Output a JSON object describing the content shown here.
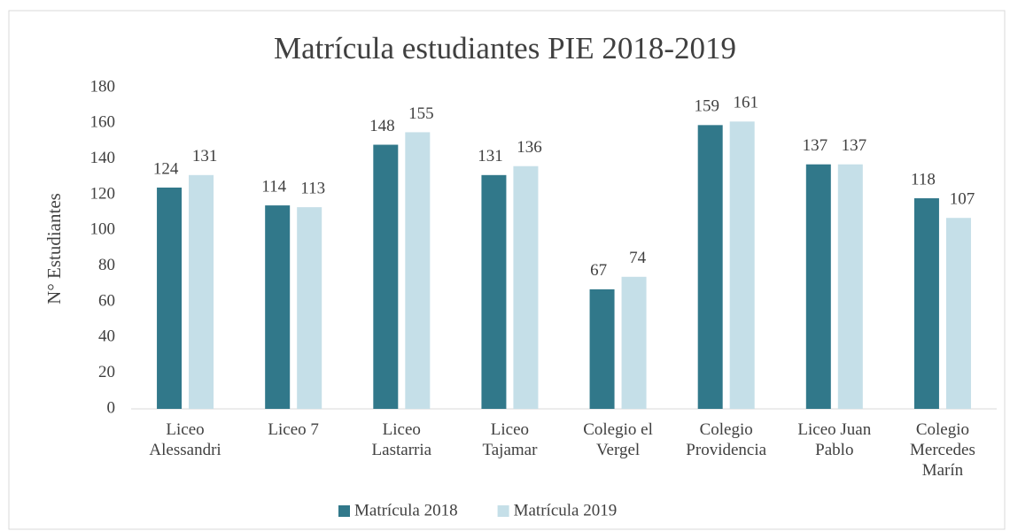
{
  "chart_data": {
    "type": "bar",
    "title": "Matrícula estudiantes PIE 2018-2019",
    "y_label": "N° Estudiantes",
    "categories": [
      "Liceo Alessandri",
      "Liceo 7",
      "Liceo Lastarria",
      "Liceo Tajamar",
      "Colegio el Vergel",
      "Colegio Providencia",
      "Liceo Juan Pablo",
      "Colegio Mercedes Marín"
    ],
    "series": [
      {
        "name": "Matrícula 2018",
        "color": "#31788a",
        "values": [
          124,
          114,
          148,
          131,
          67,
          159,
          137,
          118
        ]
      },
      {
        "name": "Matrícula 2019",
        "color": "#c5dfe8",
        "values": [
          131,
          113,
          155,
          136,
          74,
          161,
          137,
          107
        ]
      }
    ],
    "ylim": [
      0,
      180
    ],
    "yticks": [
      0,
      20,
      40,
      60,
      80,
      100,
      120,
      140,
      160,
      180
    ],
    "grid": false,
    "legend": "bottom"
  }
}
